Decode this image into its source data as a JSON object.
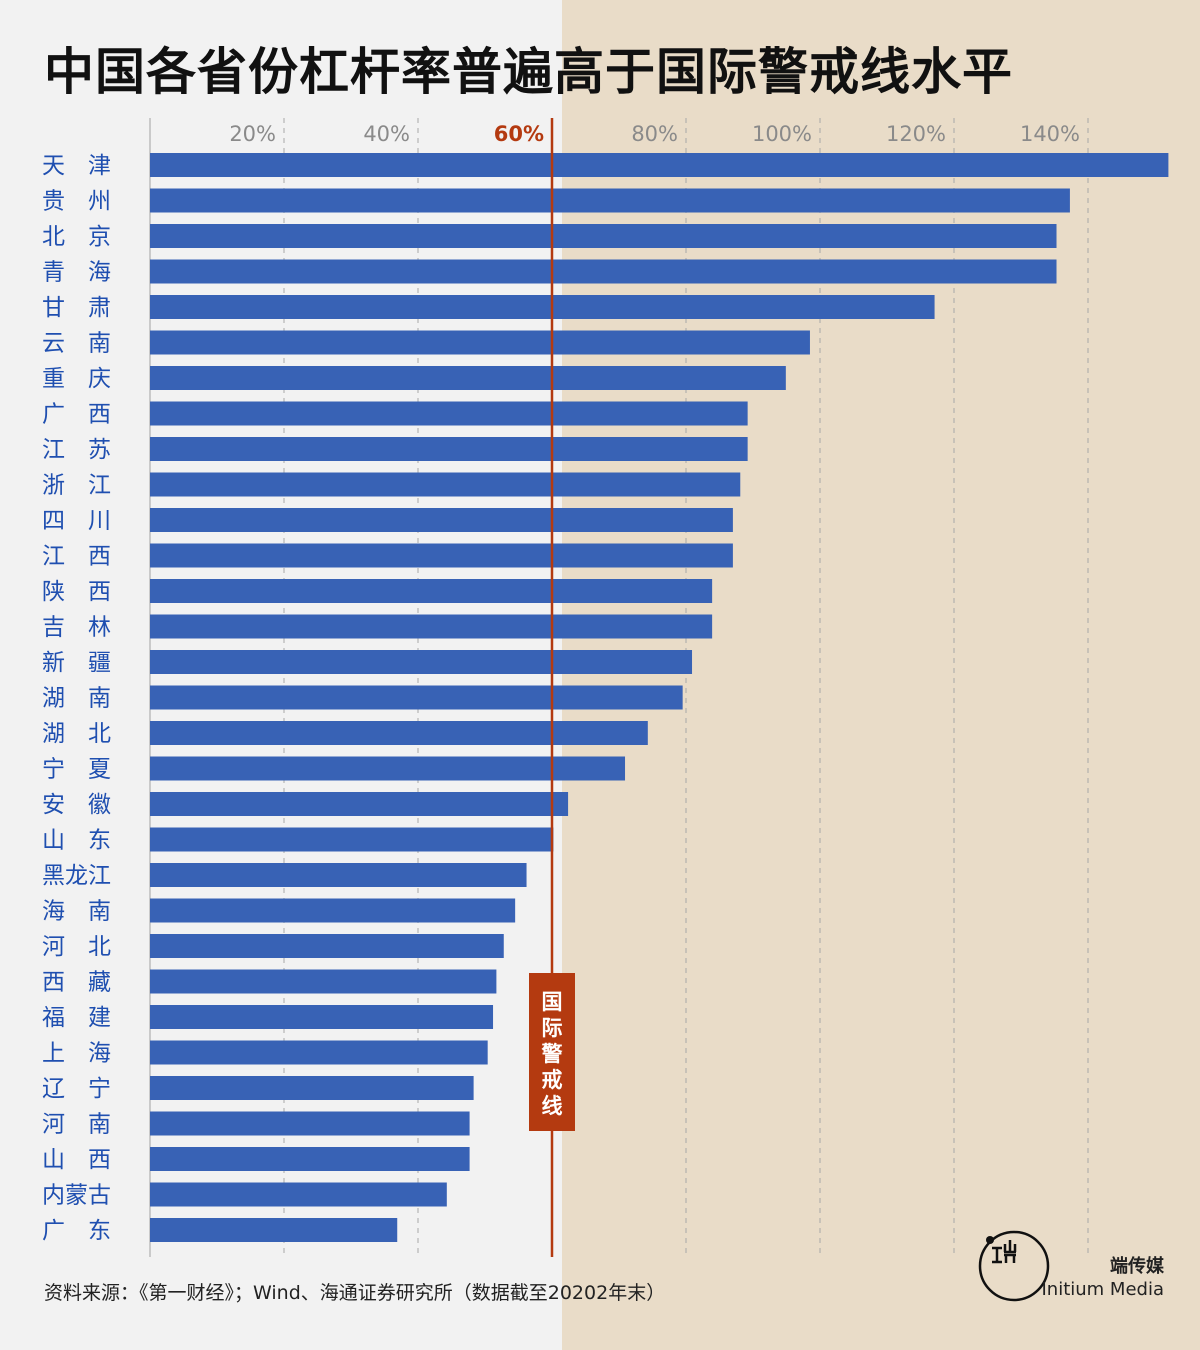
{
  "title": "中国各省份杠杆率普遍高于国际警戒线水平",
  "source": "资料来源：《第一财经》；Wind、海通证券研究所（数据截至20202年末）",
  "brand": {
    "cn": "端传媒",
    "en": "Initium Media",
    "logo_icon": "initium-logo-icon"
  },
  "colors": {
    "bar": "#3862b5",
    "threshold": "#b43a10",
    "bg_left": "#f2f2f2",
    "bg_right": "#e9dcc8"
  },
  "chart_data": {
    "type": "bar",
    "orientation": "horizontal",
    "categories": [
      "天　津",
      "贵　州",
      "北　京",
      "青　海",
      "甘　肃",
      "云　南",
      "重　庆",
      "广　西",
      "江　苏",
      "浙　江",
      "四　川",
      "江　西",
      "陕　西",
      "吉　林",
      "新　疆",
      "湖　南",
      "湖　北",
      "宁　夏",
      "安　徽",
      "山　东",
      "黑龙江",
      "海　南",
      "河　北",
      "西　藏",
      "福　建",
      "上　海",
      "辽　宁",
      "河　南",
      "山　西",
      "内蒙古",
      "广　东"
    ],
    "values": [
      152,
      137.3,
      135.3,
      135.3,
      117.1,
      98.5,
      94.9,
      89.2,
      89.2,
      88.1,
      87,
      87,
      83.9,
      83.9,
      80.9,
      79.5,
      74.3,
      70.9,
      62.4,
      60.2,
      56.2,
      54.5,
      52.8,
      51.7,
      51.2,
      50.4,
      48.3,
      47.7,
      47.7,
      44.3,
      36.9
    ],
    "x_ticks": [
      20,
      40,
      60,
      80,
      100,
      120,
      140
    ],
    "x_tick_labels": [
      "20%",
      "40%",
      "60%",
      "80%",
      "100%",
      "120%",
      "140%"
    ],
    "xlim": [
      0,
      152
    ],
    "threshold": {
      "value": 60,
      "label": "国际警戒线",
      "tick_label": "60%"
    },
    "grid": true
  }
}
